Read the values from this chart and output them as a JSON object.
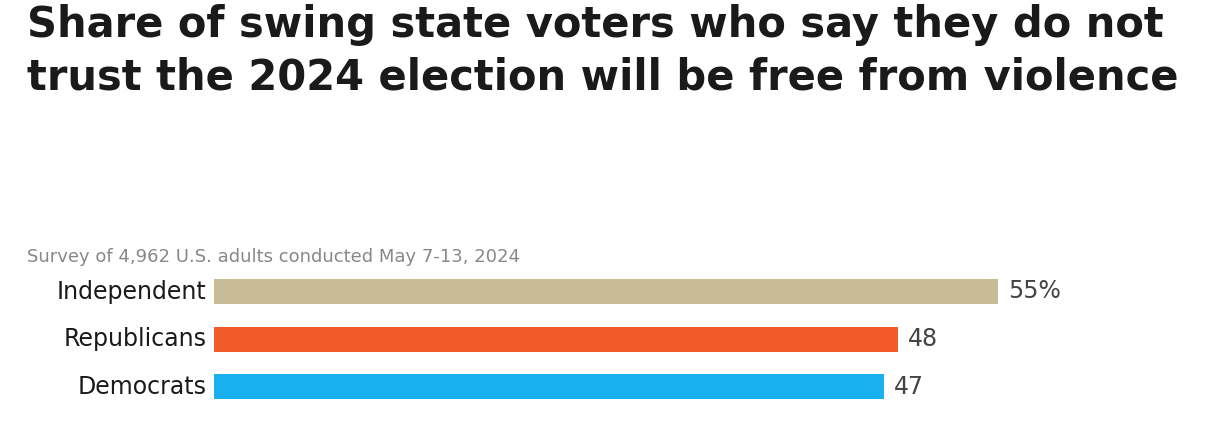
{
  "title_line1": "Share of swing state voters who say they do not",
  "title_line2": "trust the 2024 election will be free from violence",
  "subtitle": "Survey of 4,962 U.S. adults conducted May 7-13, 2024",
  "categories": [
    "Independent",
    "Republicans",
    "Democrats"
  ],
  "values": [
    55,
    48,
    47
  ],
  "bar_colors": [
    "#c8bc96",
    "#f05a28",
    "#19b0f0"
  ],
  "value_labels": [
    "55%",
    "48",
    "47"
  ],
  "background_color": "#ffffff",
  "title_fontsize": 30,
  "subtitle_fontsize": 13,
  "label_fontsize": 17,
  "value_fontsize": 17,
  "xlim": [
    0,
    65
  ],
  "bar_height": 0.52,
  "title_color": "#1a1a1a",
  "subtitle_color": "#888888",
  "label_color": "#1a1a1a",
  "value_color": "#444444"
}
